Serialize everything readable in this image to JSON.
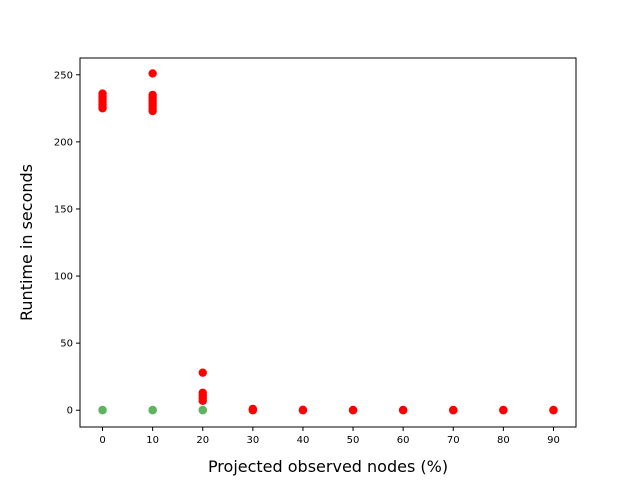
{
  "chart_data": {
    "type": "scatter",
    "title": "",
    "xlabel": "Projected observed nodes (%)",
    "ylabel": "Runtime in seconds",
    "xlim": [
      -4.5,
      94.5
    ],
    "ylim": [
      -12.5,
      262.5
    ],
    "xticks": [
      0,
      10,
      20,
      30,
      40,
      50,
      60,
      70,
      80,
      90
    ],
    "yticks": [
      0,
      50,
      100,
      150,
      200,
      250
    ],
    "grid": false,
    "series": [
      {
        "color": "#ff0000",
        "points": [
          [
            0,
            236
          ],
          [
            0,
            234
          ],
          [
            0,
            232
          ],
          [
            0,
            230
          ],
          [
            0,
            228
          ],
          [
            0,
            226
          ],
          [
            0,
            225
          ],
          [
            10,
            251
          ],
          [
            10,
            235
          ],
          [
            10,
            233
          ],
          [
            10,
            231
          ],
          [
            10,
            229
          ],
          [
            10,
            227
          ],
          [
            10,
            225
          ],
          [
            10,
            223
          ],
          [
            20,
            28
          ],
          [
            20,
            13
          ],
          [
            20,
            11
          ],
          [
            20,
            9
          ],
          [
            20,
            7
          ],
          [
            30,
            1
          ],
          [
            30,
            0.5
          ],
          [
            30,
            0
          ],
          [
            40,
            0.3
          ],
          [
            40,
            0
          ],
          [
            50,
            0.2
          ],
          [
            50,
            0
          ],
          [
            60,
            0.2
          ],
          [
            60,
            0
          ],
          [
            70,
            0.2
          ],
          [
            70,
            0
          ],
          [
            80,
            0.2
          ],
          [
            80,
            0
          ],
          [
            90,
            0.2
          ],
          [
            90,
            0
          ]
        ]
      },
      {
        "color": "#5fb35f",
        "points": [
          [
            0,
            0
          ],
          [
            0,
            0.2
          ],
          [
            10,
            0
          ],
          [
            10,
            0.2
          ],
          [
            20,
            0
          ],
          [
            20,
            0.2
          ]
        ]
      }
    ]
  }
}
